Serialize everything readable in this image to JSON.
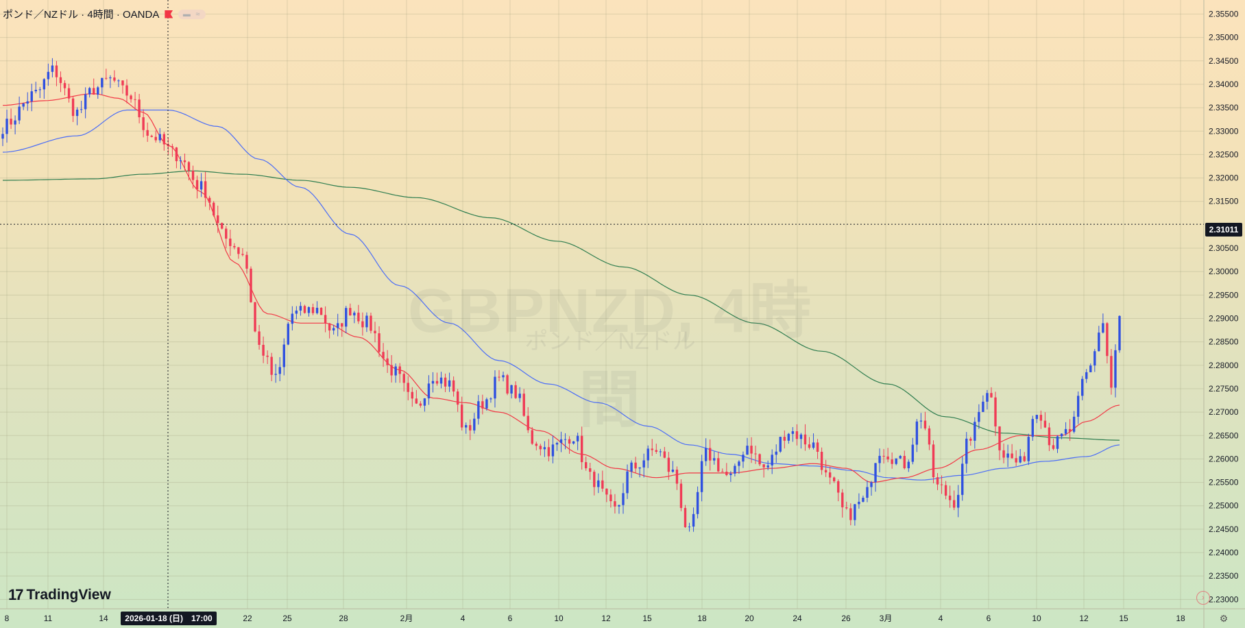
{
  "header": {
    "symbol_title": "ポンド／NZドル · 4時間 · OANDA"
  },
  "watermark": {
    "main": "GBPNZD, 4時間",
    "sub": "ポンド／NZドル"
  },
  "branding": {
    "logo_text": "TradingView"
  },
  "crosshair": {
    "price_label": "2.31011",
    "time_label": "2026-01-18 (日)　17:00"
  },
  "colors": {
    "up": "#2f50e0",
    "down": "#f03a55",
    "ma_short": "#f23645",
    "ma_mid": "#4a6cf7",
    "ma_long": "#2e7d4f"
  },
  "chart_data": {
    "type": "candlestick",
    "ylim": [
      2.23,
      2.358
    ],
    "y_ticks": [
      "2.23000",
      "2.23500",
      "2.24000",
      "2.24500",
      "2.25000",
      "2.25500",
      "2.26000",
      "2.26500",
      "2.27000",
      "2.27500",
      "2.28000",
      "2.28500",
      "2.29000",
      "2.29500",
      "2.30000",
      "2.30500",
      "2.31500",
      "2.32000",
      "2.32500",
      "2.33000",
      "2.33500",
      "2.34000",
      "2.34500",
      "2.35000",
      "2.35500"
    ],
    "x_ticks": [
      "8",
      "11",
      "14",
      "22",
      "25",
      "28",
      "2月",
      "4",
      "6",
      "10",
      "12",
      "15",
      "18",
      "20",
      "24",
      "26",
      "3月",
      "4",
      "6",
      "10",
      "12",
      "15",
      "18"
    ],
    "ohlc_anchors": [
      [
        0,
        2.331
      ],
      [
        8,
        2.338
      ],
      [
        12,
        2.343
      ],
      [
        18,
        2.334
      ],
      [
        22,
        2.339
      ],
      [
        26,
        2.341
      ],
      [
        30,
        2.338
      ],
      [
        36,
        2.329
      ],
      [
        42,
        2.325
      ],
      [
        48,
        2.318
      ],
      [
        54,
        2.307
      ],
      [
        58,
        2.304
      ],
      [
        62,
        2.284
      ],
      [
        66,
        2.277
      ],
      [
        70,
        2.291
      ],
      [
        76,
        2.292
      ],
      [
        80,
        2.287
      ],
      [
        84,
        2.292
      ],
      [
        88,
        2.289
      ],
      [
        94,
        2.279
      ],
      [
        100,
        2.271
      ],
      [
        104,
        2.278
      ],
      [
        108,
        2.276
      ],
      [
        112,
        2.266
      ],
      [
        116,
        2.272
      ],
      [
        120,
        2.277
      ],
      [
        124,
        2.274
      ],
      [
        128,
        2.264
      ],
      [
        132,
        2.262
      ],
      [
        138,
        2.265
      ],
      [
        142,
        2.256
      ],
      [
        148,
        2.249
      ],
      [
        152,
        2.258
      ],
      [
        158,
        2.262
      ],
      [
        162,
        2.257
      ],
      [
        166,
        2.244
      ],
      [
        170,
        2.261
      ],
      [
        176,
        2.256
      ],
      [
        180,
        2.263
      ],
      [
        184,
        2.258
      ],
      [
        190,
        2.266
      ],
      [
        196,
        2.263
      ],
      [
        200,
        2.255
      ],
      [
        204,
        2.248
      ],
      [
        208,
        2.251
      ],
      [
        212,
        2.262
      ],
      [
        218,
        2.259
      ],
      [
        222,
        2.269
      ],
      [
        226,
        2.254
      ],
      [
        230,
        2.251
      ],
      [
        234,
        2.265
      ],
      [
        238,
        2.275
      ],
      [
        242,
        2.261
      ],
      [
        246,
        2.259
      ],
      [
        250,
        2.271
      ],
      [
        254,
        2.263
      ],
      [
        258,
        2.266
      ],
      [
        262,
        2.278
      ],
      [
        266,
        2.289
      ],
      [
        268,
        2.275
      ],
      [
        270,
        2.29
      ]
    ],
    "ma_short_anchors": [
      [
        0,
        2.3355
      ],
      [
        10,
        2.3365
      ],
      [
        22,
        2.338
      ],
      [
        28,
        2.337
      ],
      [
        34,
        2.334
      ],
      [
        40,
        2.327
      ],
      [
        48,
        2.317
      ],
      [
        56,
        2.302
      ],
      [
        64,
        2.291
      ],
      [
        72,
        2.289
      ],
      [
        78,
        2.289
      ],
      [
        86,
        2.286
      ],
      [
        96,
        2.279
      ],
      [
        104,
        2.273
      ],
      [
        112,
        2.272
      ],
      [
        120,
        2.27
      ],
      [
        130,
        2.266
      ],
      [
        140,
        2.261
      ],
      [
        148,
        2.258
      ],
      [
        158,
        2.256
      ],
      [
        166,
        2.257
      ],
      [
        176,
        2.257
      ],
      [
        186,
        2.258
      ],
      [
        196,
        2.259
      ],
      [
        204,
        2.258
      ],
      [
        210,
        2.255
      ],
      [
        218,
        2.256
      ],
      [
        226,
        2.258
      ],
      [
        236,
        2.262
      ],
      [
        246,
        2.265
      ],
      [
        256,
        2.265
      ],
      [
        262,
        2.268
      ],
      [
        270,
        2.2715
      ]
    ],
    "ma_mid_anchors": [
      [
        0,
        2.3255
      ],
      [
        18,
        2.329
      ],
      [
        30,
        2.3345
      ],
      [
        40,
        2.3345
      ],
      [
        52,
        2.331
      ],
      [
        62,
        2.324
      ],
      [
        72,
        2.318
      ],
      [
        84,
        2.308
      ],
      [
        96,
        2.297
      ],
      [
        108,
        2.289
      ],
      [
        120,
        2.281
      ],
      [
        132,
        2.276
      ],
      [
        144,
        2.272
      ],
      [
        156,
        2.267
      ],
      [
        166,
        2.263
      ],
      [
        176,
        2.261
      ],
      [
        186,
        2.259
      ],
      [
        196,
        2.2585
      ],
      [
        206,
        2.2575
      ],
      [
        214,
        2.256
      ],
      [
        222,
        2.2555
      ],
      [
        232,
        2.2565
      ],
      [
        242,
        2.258
      ],
      [
        252,
        2.2595
      ],
      [
        262,
        2.2605
      ],
      [
        270,
        2.263
      ]
    ],
    "ma_long_anchors": [
      [
        0,
        2.3195
      ],
      [
        22,
        2.3198
      ],
      [
        34,
        2.3208
      ],
      [
        46,
        2.3215
      ],
      [
        58,
        2.3208
      ],
      [
        72,
        2.3195
      ],
      [
        84,
        2.318
      ],
      [
        100,
        2.3158
      ],
      [
        118,
        2.3115
      ],
      [
        134,
        2.3065
      ],
      [
        150,
        2.301
      ],
      [
        166,
        2.295
      ],
      [
        182,
        2.289
      ],
      [
        198,
        2.283
      ],
      [
        214,
        2.276
      ],
      [
        228,
        2.269
      ],
      [
        242,
        2.2655
      ],
      [
        256,
        2.2645
      ],
      [
        270,
        2.264
      ]
    ]
  }
}
